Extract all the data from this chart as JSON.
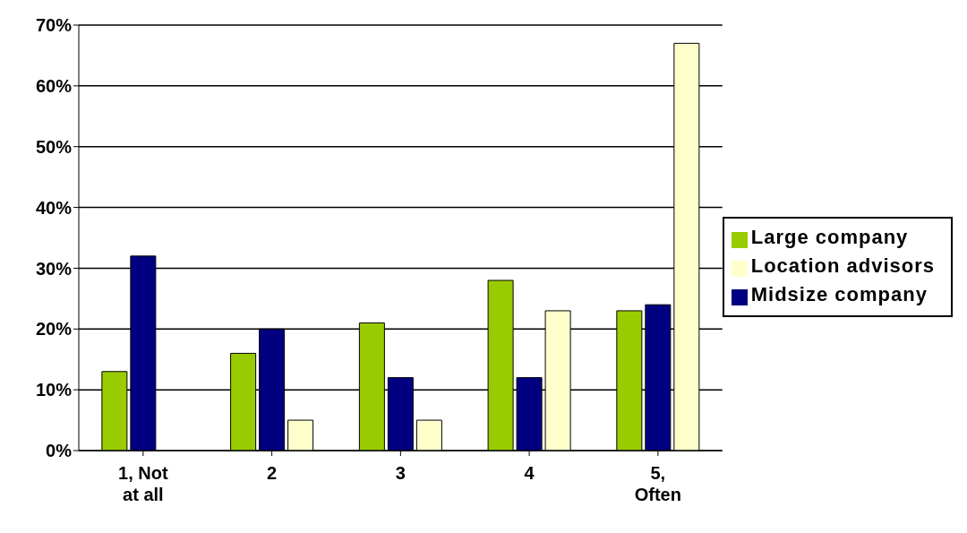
{
  "chart_data": {
    "type": "bar",
    "categories": [
      "1, Not at all",
      "2",
      "3",
      "4",
      "5, Often"
    ],
    "series": [
      {
        "name": "Large company",
        "color": "#99cc00",
        "values": [
          13,
          16,
          21,
          28,
          23
        ]
      },
      {
        "name": "Midsize company",
        "color": "#000080",
        "values": [
          32,
          20,
          12,
          12,
          24
        ]
      },
      {
        "name": "Location advisors",
        "color": "#ffffcc",
        "values": [
          0,
          5,
          5,
          23,
          67
        ]
      }
    ],
    "ylim": [
      0,
      70
    ],
    "yticks": [
      {
        "value": 0,
        "label": "0%"
      },
      {
        "value": 10,
        "label": "10%"
      },
      {
        "value": 20,
        "label": "20%"
      },
      {
        "value": 30,
        "label": "30%"
      },
      {
        "value": 40,
        "label": "40%"
      },
      {
        "value": 50,
        "label": "50%"
      },
      {
        "value": 60,
        "label": "60%"
      },
      {
        "value": 70,
        "label": "70%"
      }
    ],
    "grid": "y",
    "legend": "right"
  }
}
